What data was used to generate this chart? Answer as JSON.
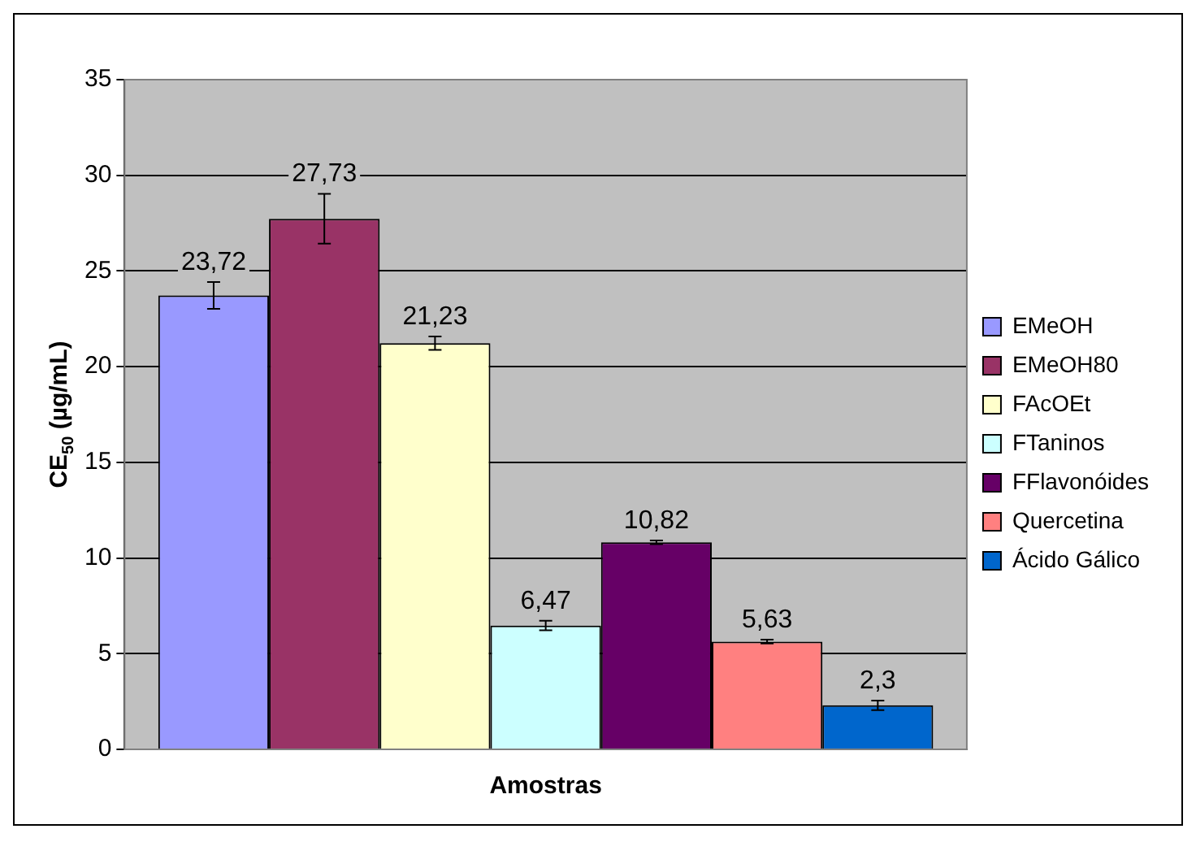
{
  "chart_data": {
    "type": "bar",
    "xlabel": "Amostras",
    "ylabel": "CE$_{50}$ (µg/mL)",
    "categories": [
      null
    ],
    "series": [
      {
        "name": "EMeOH",
        "color": "#9999ff",
        "values": [
          23.72
        ],
        "errors": [
          0.7
        ],
        "value_labels": [
          "23,72"
        ]
      },
      {
        "name": "EMeOH80",
        "color": "#993366",
        "values": [
          27.73
        ],
        "errors": [
          1.3
        ],
        "value_labels": [
          "27,73"
        ]
      },
      {
        "name": "FAcOEt",
        "color": "#ffffcc",
        "values": [
          21.23
        ],
        "errors": [
          0.35
        ],
        "value_labels": [
          "21,23"
        ]
      },
      {
        "name": "FTaninos",
        "color": "#ccffff",
        "values": [
          6.47
        ],
        "errors": [
          0.25
        ],
        "value_labels": [
          "6,47"
        ]
      },
      {
        "name": "FFlavonóides",
        "color": "#660066",
        "values": [
          10.82
        ],
        "errors": [
          0.1
        ],
        "value_labels": [
          "10,82"
        ]
      },
      {
        "name": "Quercetina",
        "color": "#ff8080",
        "values": [
          5.63
        ],
        "errors": [
          0.1
        ],
        "value_labels": [
          "5,63"
        ]
      },
      {
        "name": "Ácido Gálico",
        "color": "#0066cc",
        "values": [
          2.3
        ],
        "errors": [
          0.25
        ],
        "value_labels": [
          "2,3"
        ]
      }
    ],
    "ylim": [
      0,
      35
    ],
    "yticks": [
      0,
      5,
      10,
      15,
      20,
      25,
      30,
      35
    ],
    "grid": "y",
    "legend": "right"
  }
}
